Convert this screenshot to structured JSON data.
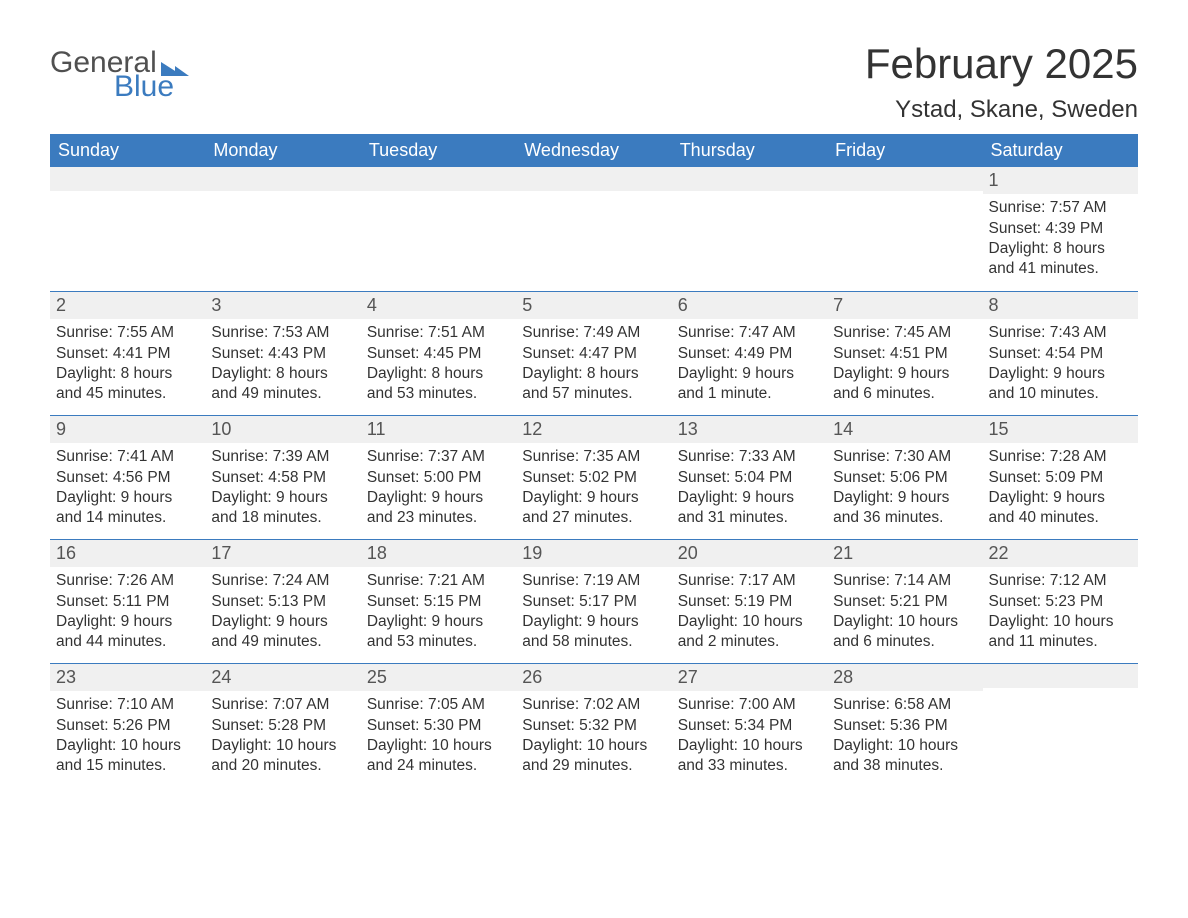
{
  "logo": {
    "text1": "General",
    "text2": "Blue"
  },
  "title": "February 2025",
  "location": "Ystad, Skane, Sweden",
  "colors": {
    "header_bg": "#3b7bbf",
    "header_text": "#ffffff",
    "row_sep": "#3b7bbf",
    "daynum_bg": "#f0f0f0",
    "body_text": "#333333",
    "page_bg": "#ffffff"
  },
  "fonts": {
    "title_size_pt": 32,
    "location_size_pt": 18,
    "dow_size_pt": 14,
    "body_size_pt": 12
  },
  "days_of_week": [
    "Sunday",
    "Monday",
    "Tuesday",
    "Wednesday",
    "Thursday",
    "Friday",
    "Saturday"
  ],
  "weeks": [
    [
      null,
      null,
      null,
      null,
      null,
      null,
      {
        "n": "1",
        "sunrise": "Sunrise: 7:57 AM",
        "sunset": "Sunset: 4:39 PM",
        "daylight": "Daylight: 8 hours and 41 minutes."
      }
    ],
    [
      {
        "n": "2",
        "sunrise": "Sunrise: 7:55 AM",
        "sunset": "Sunset: 4:41 PM",
        "daylight": "Daylight: 8 hours and 45 minutes."
      },
      {
        "n": "3",
        "sunrise": "Sunrise: 7:53 AM",
        "sunset": "Sunset: 4:43 PM",
        "daylight": "Daylight: 8 hours and 49 minutes."
      },
      {
        "n": "4",
        "sunrise": "Sunrise: 7:51 AM",
        "sunset": "Sunset: 4:45 PM",
        "daylight": "Daylight: 8 hours and 53 minutes."
      },
      {
        "n": "5",
        "sunrise": "Sunrise: 7:49 AM",
        "sunset": "Sunset: 4:47 PM",
        "daylight": "Daylight: 8 hours and 57 minutes."
      },
      {
        "n": "6",
        "sunrise": "Sunrise: 7:47 AM",
        "sunset": "Sunset: 4:49 PM",
        "daylight": "Daylight: 9 hours and 1 minute."
      },
      {
        "n": "7",
        "sunrise": "Sunrise: 7:45 AM",
        "sunset": "Sunset: 4:51 PM",
        "daylight": "Daylight: 9 hours and 6 minutes."
      },
      {
        "n": "8",
        "sunrise": "Sunrise: 7:43 AM",
        "sunset": "Sunset: 4:54 PM",
        "daylight": "Daylight: 9 hours and 10 minutes."
      }
    ],
    [
      {
        "n": "9",
        "sunrise": "Sunrise: 7:41 AM",
        "sunset": "Sunset: 4:56 PM",
        "daylight": "Daylight: 9 hours and 14 minutes."
      },
      {
        "n": "10",
        "sunrise": "Sunrise: 7:39 AM",
        "sunset": "Sunset: 4:58 PM",
        "daylight": "Daylight: 9 hours and 18 minutes."
      },
      {
        "n": "11",
        "sunrise": "Sunrise: 7:37 AM",
        "sunset": "Sunset: 5:00 PM",
        "daylight": "Daylight: 9 hours and 23 minutes."
      },
      {
        "n": "12",
        "sunrise": "Sunrise: 7:35 AM",
        "sunset": "Sunset: 5:02 PM",
        "daylight": "Daylight: 9 hours and 27 minutes."
      },
      {
        "n": "13",
        "sunrise": "Sunrise: 7:33 AM",
        "sunset": "Sunset: 5:04 PM",
        "daylight": "Daylight: 9 hours and 31 minutes."
      },
      {
        "n": "14",
        "sunrise": "Sunrise: 7:30 AM",
        "sunset": "Sunset: 5:06 PM",
        "daylight": "Daylight: 9 hours and 36 minutes."
      },
      {
        "n": "15",
        "sunrise": "Sunrise: 7:28 AM",
        "sunset": "Sunset: 5:09 PM",
        "daylight": "Daylight: 9 hours and 40 minutes."
      }
    ],
    [
      {
        "n": "16",
        "sunrise": "Sunrise: 7:26 AM",
        "sunset": "Sunset: 5:11 PM",
        "daylight": "Daylight: 9 hours and 44 minutes."
      },
      {
        "n": "17",
        "sunrise": "Sunrise: 7:24 AM",
        "sunset": "Sunset: 5:13 PM",
        "daylight": "Daylight: 9 hours and 49 minutes."
      },
      {
        "n": "18",
        "sunrise": "Sunrise: 7:21 AM",
        "sunset": "Sunset: 5:15 PM",
        "daylight": "Daylight: 9 hours and 53 minutes."
      },
      {
        "n": "19",
        "sunrise": "Sunrise: 7:19 AM",
        "sunset": "Sunset: 5:17 PM",
        "daylight": "Daylight: 9 hours and 58 minutes."
      },
      {
        "n": "20",
        "sunrise": "Sunrise: 7:17 AM",
        "sunset": "Sunset: 5:19 PM",
        "daylight": "Daylight: 10 hours and 2 minutes."
      },
      {
        "n": "21",
        "sunrise": "Sunrise: 7:14 AM",
        "sunset": "Sunset: 5:21 PM",
        "daylight": "Daylight: 10 hours and 6 minutes."
      },
      {
        "n": "22",
        "sunrise": "Sunrise: 7:12 AM",
        "sunset": "Sunset: 5:23 PM",
        "daylight": "Daylight: 10 hours and 11 minutes."
      }
    ],
    [
      {
        "n": "23",
        "sunrise": "Sunrise: 7:10 AM",
        "sunset": "Sunset: 5:26 PM",
        "daylight": "Daylight: 10 hours and 15 minutes."
      },
      {
        "n": "24",
        "sunrise": "Sunrise: 7:07 AM",
        "sunset": "Sunset: 5:28 PM",
        "daylight": "Daylight: 10 hours and 20 minutes."
      },
      {
        "n": "25",
        "sunrise": "Sunrise: 7:05 AM",
        "sunset": "Sunset: 5:30 PM",
        "daylight": "Daylight: 10 hours and 24 minutes."
      },
      {
        "n": "26",
        "sunrise": "Sunrise: 7:02 AM",
        "sunset": "Sunset: 5:32 PM",
        "daylight": "Daylight: 10 hours and 29 minutes."
      },
      {
        "n": "27",
        "sunrise": "Sunrise: 7:00 AM",
        "sunset": "Sunset: 5:34 PM",
        "daylight": "Daylight: 10 hours and 33 minutes."
      },
      {
        "n": "28",
        "sunrise": "Sunrise: 6:58 AM",
        "sunset": "Sunset: 5:36 PM",
        "daylight": "Daylight: 10 hours and 38 minutes."
      },
      null
    ]
  ]
}
